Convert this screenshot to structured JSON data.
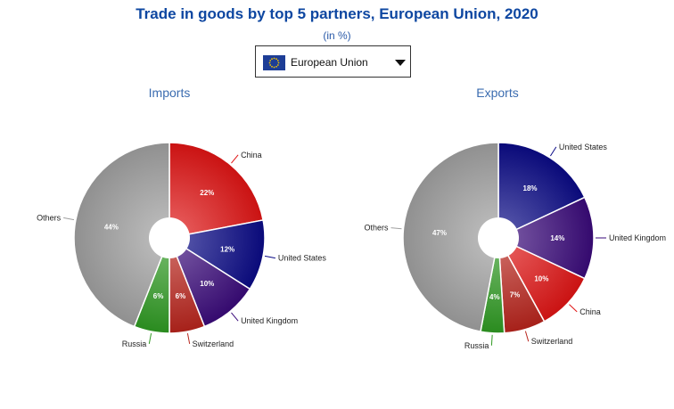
{
  "header": {
    "title": "Trade in goods by top 5 partners, European Union, 2020",
    "subtitle": "(in %)"
  },
  "selector": {
    "value": "European Union",
    "flag_icon": "eu-flag-icon"
  },
  "colors": {
    "title": "#0e47a1",
    "panel_title": "#3b6cb0"
  },
  "chart_data": [
    {
      "type": "pie",
      "title": "Imports",
      "donut": true,
      "slices": [
        {
          "label": "China",
          "value": 22,
          "display": "22%",
          "color": "#e01414"
        },
        {
          "label": "United States",
          "value": 12,
          "display": "12%",
          "color": "#0a0a86"
        },
        {
          "label": "United Kingdom",
          "value": 10,
          "display": "10%",
          "color": "#3a0a7a"
        },
        {
          "label": "Switzerland",
          "value": 6,
          "display": "6%",
          "color": "#b8241c"
        },
        {
          "label": "Russia",
          "value": 6,
          "display": "6%",
          "color": "#2f9a22"
        },
        {
          "label": "Others",
          "value": 44,
          "display": "44%",
          "color": "#a0a0a0"
        }
      ]
    },
    {
      "type": "pie",
      "title": "Exports",
      "donut": true,
      "slices": [
        {
          "label": "United States",
          "value": 18,
          "display": "18%",
          "color": "#0a0a86"
        },
        {
          "label": "United Kingdom",
          "value": 14,
          "display": "14%",
          "color": "#3a0a7a"
        },
        {
          "label": "China",
          "value": 10,
          "display": "10%",
          "color": "#e01414"
        },
        {
          "label": "Switzerland",
          "value": 7,
          "display": "7%",
          "color": "#b8241c"
        },
        {
          "label": "Russia",
          "value": 4,
          "display": "4%",
          "color": "#2f9a22"
        },
        {
          "label": "Others",
          "value": 47,
          "display": "47%",
          "color": "#a0a0a0"
        }
      ]
    }
  ]
}
